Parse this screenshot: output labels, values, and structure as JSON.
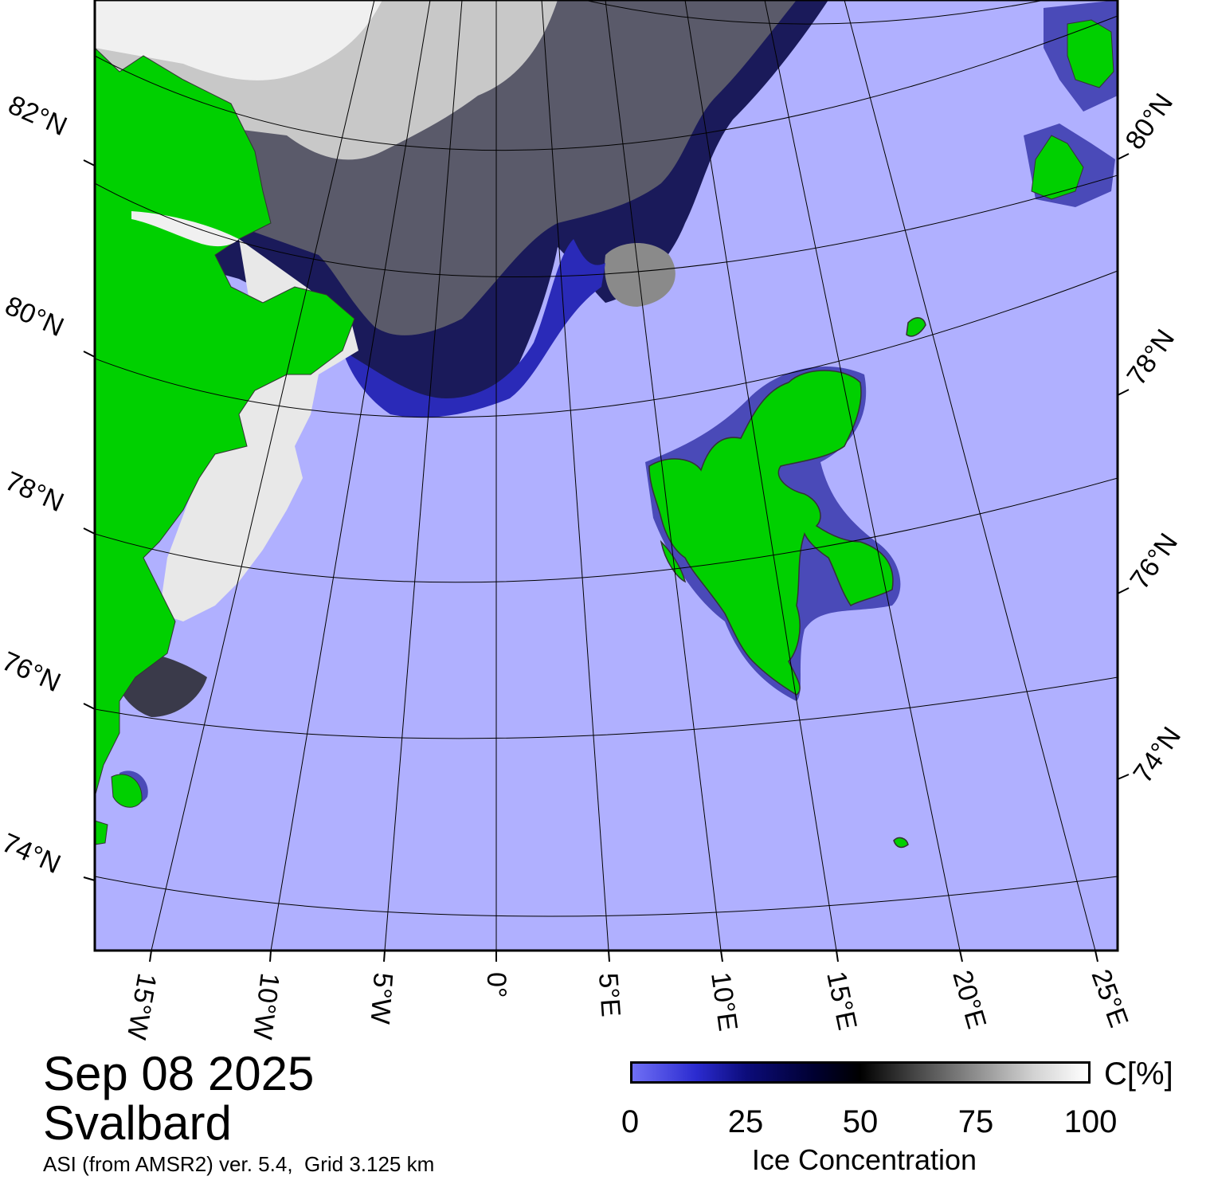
{
  "date": "Sep 08 2025",
  "region": "Svalbard",
  "source": "ASI (from AMSR2) ver. 5.4,  Grid 3.125 km",
  "colorbar": {
    "unit": "C[%]",
    "title": "Ice Concentration",
    "ticks": [
      "0",
      "25",
      "50",
      "75",
      "100"
    ]
  },
  "latitude_labels_left": [
    "82°N",
    "80°N",
    "78°N",
    "76°N",
    "74°N"
  ],
  "latitude_labels_right": [
    "80°N",
    "78°N",
    "76°N",
    "74°N"
  ],
  "longitude_labels": [
    "15°W",
    "10°W",
    "5°W",
    "0°",
    "5°E",
    "10°E",
    "15°E",
    "20°E",
    "25°E"
  ],
  "colors": {
    "ocean": "#b0b0ff",
    "land": "#00d000",
    "ice_low": "#6f6ff5",
    "ice_mid": "#000000",
    "ice_high": "#ffffff"
  }
}
